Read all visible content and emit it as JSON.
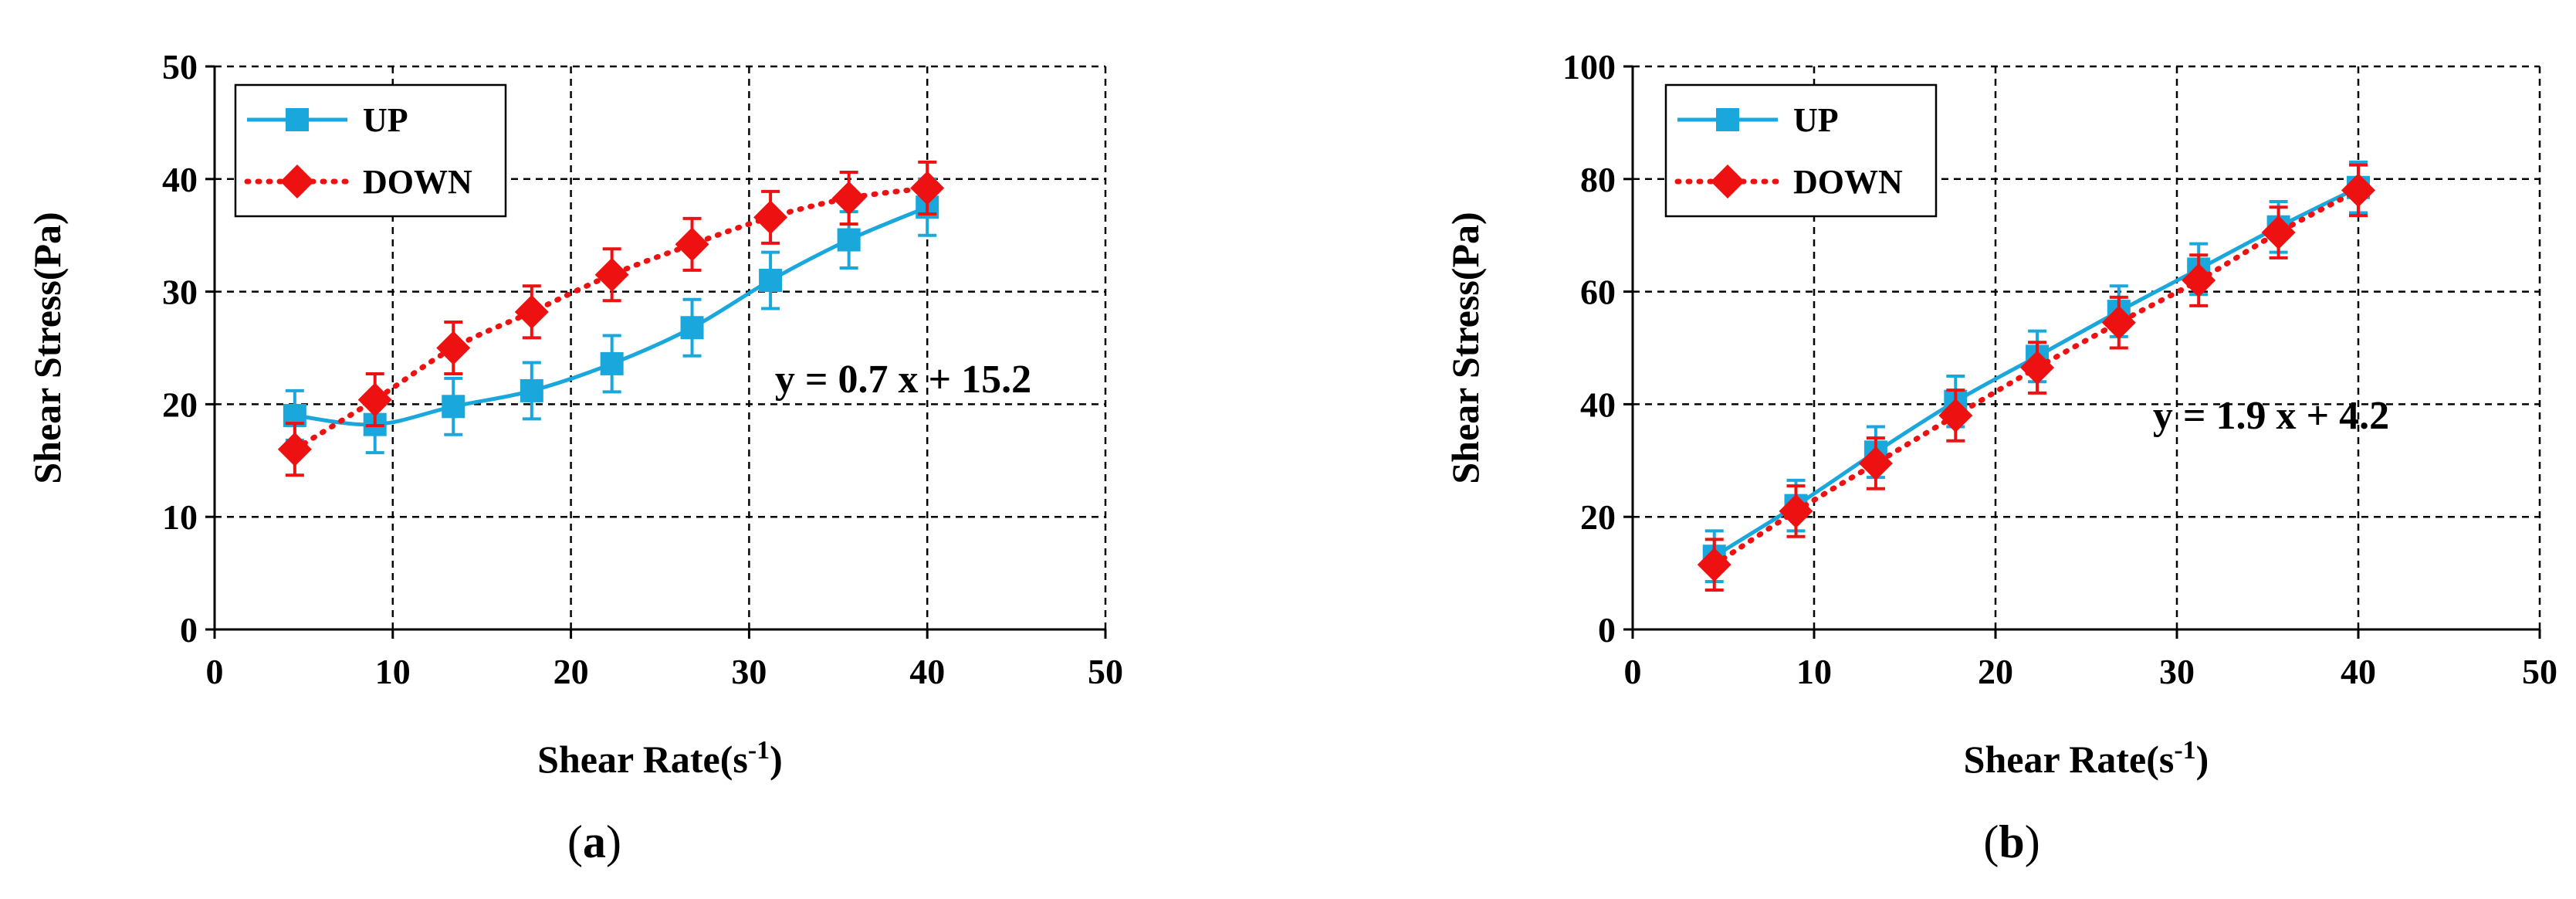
{
  "colors": {
    "up": "#1aa7dc",
    "down": "#ee1111"
  },
  "panels": [
    {
      "label": "(a)",
      "letter": "a"
    },
    {
      "label": "(b)",
      "letter": "b"
    }
  ],
  "chart_data": [
    {
      "type": "line",
      "xlabel": "Shear Rate(s⁻¹)",
      "ylabel": "Shear Stress(Pa)",
      "xlim": [
        0,
        50
      ],
      "ylim": [
        0,
        50
      ],
      "xticks": [
        0,
        10,
        20,
        30,
        40,
        50
      ],
      "yticks": [
        0,
        10,
        20,
        30,
        40,
        50
      ],
      "grid": true,
      "legend_position": "top-left",
      "annotation": "y = 0.7 x + 15.2",
      "series": [
        {
          "name": "UP",
          "marker": "square",
          "line_style": "solid",
          "x": [
            4.5,
            9,
            13.4,
            17.8,
            22.3,
            26.8,
            31.2,
            35.6,
            40
          ],
          "y": [
            19,
            18.2,
            19.8,
            21.2,
            23.6,
            26.8,
            31,
            34.6,
            37.5
          ],
          "error": [
            2.2,
            2.5,
            2.5,
            2.5,
            2.5,
            2.5,
            2.5,
            2.5,
            2.5
          ]
        },
        {
          "name": "DOWN",
          "marker": "diamond",
          "line_style": "dotted",
          "x": [
            4.5,
            9,
            13.4,
            17.8,
            22.3,
            26.8,
            31.2,
            35.6,
            40
          ],
          "y": [
            16,
            20.4,
            25,
            28.2,
            31.5,
            34.2,
            36.6,
            38.3,
            39.2
          ],
          "error": [
            2.3,
            2.3,
            2.3,
            2.3,
            2.3,
            2.3,
            2.3,
            2.3,
            2.3
          ]
        }
      ]
    },
    {
      "type": "line",
      "xlabel": "Shear Rate(s⁻¹)",
      "ylabel": "Shear Stress(Pa)",
      "xlim": [
        0,
        50
      ],
      "ylim": [
        0,
        100
      ],
      "xticks": [
        0,
        10,
        20,
        30,
        40,
        50
      ],
      "yticks": [
        0,
        20,
        40,
        60,
        80,
        100
      ],
      "grid": true,
      "legend_position": "top-left",
      "annotation": "y = 1.9 x + 4.2",
      "series": [
        {
          "name": "UP",
          "marker": "square",
          "line_style": "solid",
          "x": [
            4.5,
            9,
            13.4,
            17.8,
            22.3,
            26.8,
            31.2,
            35.6,
            40
          ],
          "y": [
            13,
            22,
            31.5,
            40.5,
            48.5,
            56.5,
            64,
            71.5,
            78.5
          ],
          "error": [
            4.5,
            4.5,
            4.5,
            4.5,
            4.5,
            4.5,
            4.5,
            4.5,
            4.5
          ]
        },
        {
          "name": "DOWN",
          "marker": "diamond",
          "line_style": "dotted",
          "x": [
            4.5,
            9,
            13.4,
            17.8,
            22.3,
            26.8,
            31.2,
            35.6,
            40
          ],
          "y": [
            11.5,
            21,
            29.5,
            38,
            46.5,
            54.5,
            62,
            70.5,
            78
          ],
          "error": [
            4.5,
            4.5,
            4.5,
            4.5,
            4.5,
            4.5,
            4.5,
            4.5,
            4.5
          ]
        }
      ]
    }
  ]
}
